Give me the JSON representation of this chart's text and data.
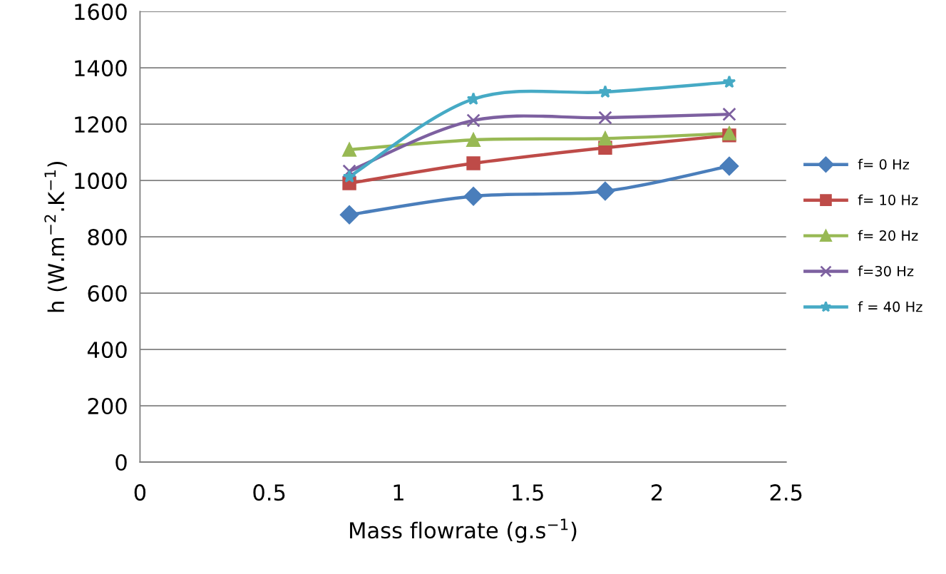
{
  "chart_data": {
    "type": "line",
    "xlabel": "Mass flowrate (g.s$^{−1}$)",
    "ylabel": "h (W.m$^{−2}$.K$^{−1}$)",
    "x": [
      0.81,
      1.29,
      1.8,
      2.28
    ],
    "series": [
      {
        "name": "f= 0 Hz",
        "color": "#4a7ebb",
        "marker": "diamond",
        "values": [
          878,
          944,
          962,
          1051
        ]
      },
      {
        "name": "f= 10 Hz",
        "color": "#be4b48",
        "marker": "square",
        "values": [
          990,
          1061,
          1116,
          1160
        ]
      },
      {
        "name": "f= 20 Hz",
        "color": "#98b954",
        "marker": "triangle",
        "values": [
          1109,
          1144,
          1149,
          1167
        ]
      },
      {
        "name": "f=30 Hz",
        "color": "#7d60a0",
        "marker": "cross",
        "values": [
          1033,
          1213,
          1223,
          1235
        ]
      },
      {
        "name": "f = 40 Hz",
        "color": "#46aac5",
        "marker": "star",
        "values": [
          1013,
          1289,
          1314,
          1349
        ]
      }
    ],
    "xlim": [
      0,
      2.5
    ],
    "xticks": [
      0,
      0.5,
      1,
      1.5,
      2,
      2.5
    ],
    "ylim": [
      0,
      1600
    ],
    "yticks": [
      0,
      200,
      400,
      600,
      800,
      1000,
      1200,
      1400,
      1600
    ],
    "grid": "y",
    "legend": "right",
    "line_style": "solid"
  }
}
